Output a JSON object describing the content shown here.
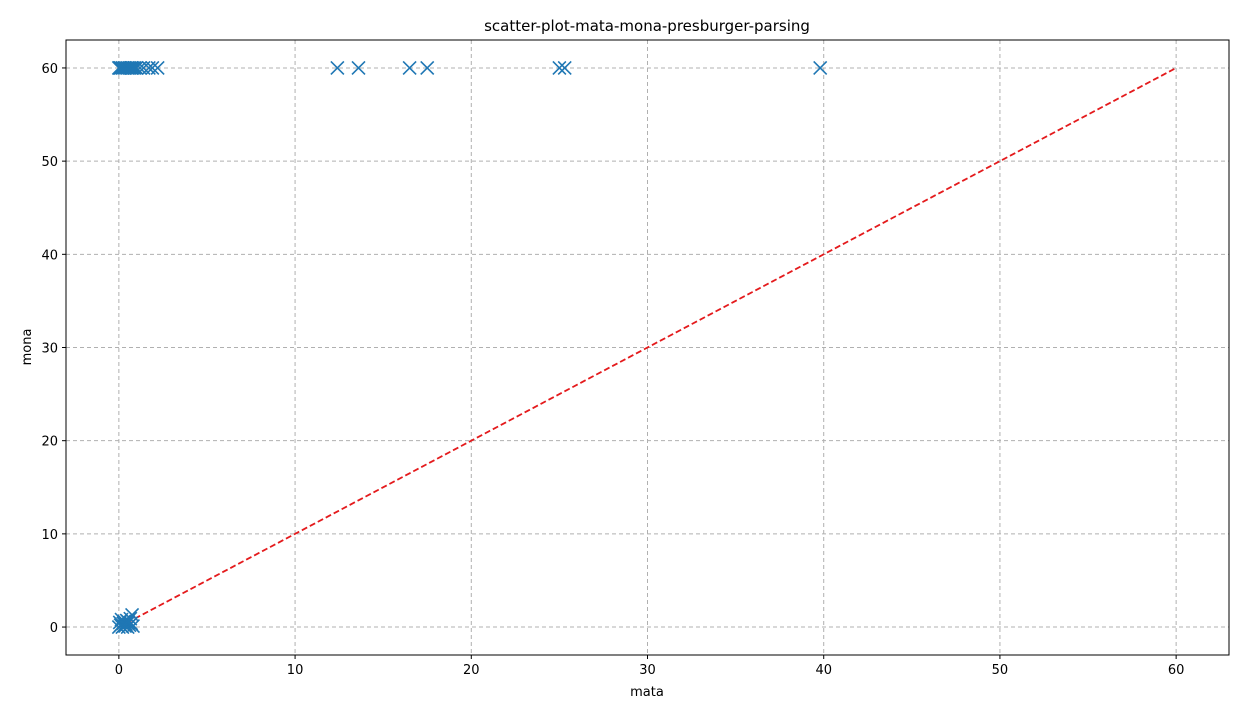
{
  "chart_data": {
    "type": "scatter",
    "title": "scatter-plot-mata-mona-presburger-parsing",
    "xlabel": "mata",
    "ylabel": "mona",
    "xlim": [
      -3,
      63
    ],
    "ylim": [
      -3,
      63
    ],
    "xticks": [
      0,
      10,
      20,
      30,
      40,
      50,
      60
    ],
    "yticks": [
      0,
      10,
      20,
      30,
      40,
      50,
      60
    ],
    "grid": true,
    "marker": "x",
    "marker_color": "#1f77b4",
    "diagonal": {
      "from": [
        0,
        0
      ],
      "to": [
        60,
        60
      ],
      "color": "#e41a1c",
      "style": "dashed"
    },
    "points": [
      [
        0.0,
        60
      ],
      [
        0.05,
        60
      ],
      [
        0.1,
        60
      ],
      [
        0.2,
        60
      ],
      [
        0.3,
        60
      ],
      [
        0.4,
        60
      ],
      [
        0.5,
        60
      ],
      [
        0.6,
        60
      ],
      [
        0.7,
        60
      ],
      [
        0.8,
        60
      ],
      [
        0.9,
        60
      ],
      [
        1.0,
        60
      ],
      [
        1.2,
        60
      ],
      [
        1.4,
        60
      ],
      [
        1.7,
        60
      ],
      [
        1.9,
        60
      ],
      [
        2.2,
        60
      ],
      [
        12.4,
        60
      ],
      [
        13.6,
        60
      ],
      [
        16.5,
        60
      ],
      [
        17.5,
        60
      ],
      [
        25.0,
        60
      ],
      [
        25.3,
        60
      ],
      [
        39.8,
        60
      ],
      [
        0.0,
        0.0
      ],
      [
        0.05,
        0.5
      ],
      [
        0.1,
        0.2
      ],
      [
        0.15,
        0.8
      ],
      [
        0.2,
        0.0
      ],
      [
        0.25,
        0.4
      ],
      [
        0.3,
        0.6
      ],
      [
        0.35,
        0.1
      ],
      [
        0.4,
        0.3
      ],
      [
        0.45,
        0.7
      ],
      [
        0.5,
        0.0
      ],
      [
        0.55,
        0.5
      ],
      [
        0.6,
        0.2
      ],
      [
        0.65,
        0.9
      ],
      [
        0.7,
        0.4
      ],
      [
        0.75,
        1.3
      ],
      [
        0.8,
        0.1
      ],
      [
        0.5,
        0.6
      ]
    ]
  }
}
